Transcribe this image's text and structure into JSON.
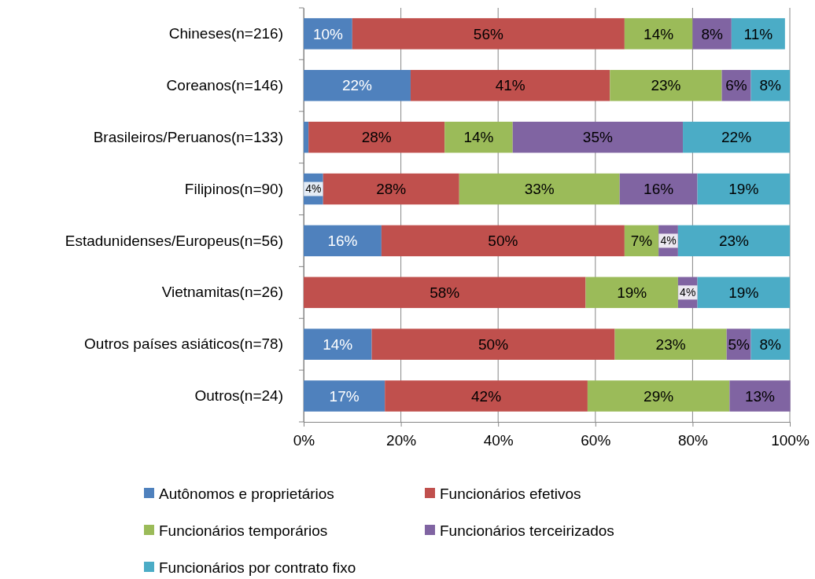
{
  "chart_data": {
    "type": "bar",
    "orientation": "horizontal",
    "stacked": true,
    "categories": [
      "Chineses(n=216)",
      "Coreanos(n=146)",
      "Brasileiros/Peruanos(n=133)",
      "Filipinos(n=90)",
      "Estadunidenses/Europeus(n=56)",
      "Vietnamitas(n=26)",
      "Outros países asiáticos(n=78)",
      "Outros(n=24)"
    ],
    "series": [
      {
        "name": "Autônomos e proprietários",
        "color": "#4f81bd",
        "values": [
          10,
          22,
          1,
          4,
          16,
          null,
          14,
          16.7
        ],
        "value_labels": [
          "10%",
          "22%",
          null,
          "4%",
          "16%",
          null,
          "14%",
          "17%"
        ]
      },
      {
        "name": "Funcionários efetivos",
        "color": "#c0504d",
        "values": [
          56,
          41,
          28,
          28,
          50,
          58,
          50,
          41.7
        ],
        "value_labels": [
          "56%",
          "41%",
          "28%",
          "28%",
          "50%",
          "58%",
          "50%",
          "42%"
        ]
      },
      {
        "name": "Funcionários temporários",
        "color": "#9bbb59",
        "values": [
          14,
          23,
          14,
          33,
          7,
          19,
          23,
          29.2
        ],
        "value_labels": [
          "14%",
          "23%",
          "14%",
          "33%",
          "7%",
          "19%",
          "23%",
          "29%"
        ]
      },
      {
        "name": "Funcionários terceirizados",
        "color": "#8064a2",
        "values": [
          8,
          6,
          35,
          16,
          4,
          4,
          5,
          12.5
        ],
        "value_labels": [
          "8%",
          "6%",
          "35%",
          "16%",
          "4%",
          "4%",
          "5%",
          "13%"
        ]
      },
      {
        "name": "Funcionários por contrato fixo",
        "color": "#4bacc6",
        "values": [
          11,
          8,
          22,
          19,
          23,
          19,
          8,
          null
        ],
        "value_labels": [
          "11%",
          "8%",
          "22%",
          "19%",
          "23%",
          "19%",
          "8%",
          null
        ]
      }
    ],
    "xlim": [
      0,
      100
    ],
    "xticks": [
      {
        "value": 0,
        "label": "0%"
      },
      {
        "value": 20,
        "label": "20%"
      },
      {
        "value": 40,
        "label": "40%"
      },
      {
        "value": 60,
        "label": "60%"
      },
      {
        "value": 80,
        "label": "80%"
      },
      {
        "value": 100,
        "label": "100%"
      }
    ],
    "grid": "x",
    "legend": "bottom"
  }
}
